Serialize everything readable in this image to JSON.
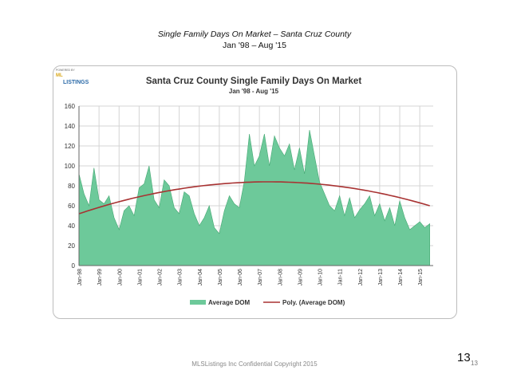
{
  "slide": {
    "title_line1": "Single Family Days On Market – Santa Cruz County",
    "title_line2": "Jan '98 – Aug '15",
    "footer": "MLSListings Inc Confidential Copyright 2015",
    "page_number_large": "13",
    "page_number_small": "13",
    "logo_top": "POWERED BY",
    "logo_ml": "ML",
    "logo_main": "LISTINGS"
  },
  "colors": {
    "area_fill": "#6dc99a",
    "area_stroke": "#45a873",
    "trend": "#a83232",
    "grid": "#d4d4d4",
    "axis": "#666666",
    "text": "#333333"
  },
  "chart_data": {
    "type": "area",
    "title": "Santa Cruz County Single Family Days On Market",
    "subtitle": "Jan '98 - Aug '15",
    "xlabel": "",
    "ylabel": "",
    "ylim": [
      0,
      160
    ],
    "yticks": [
      0,
      20,
      40,
      60,
      80,
      100,
      120,
      140,
      160
    ],
    "grid": true,
    "legend_position": "bottom",
    "xticks": [
      "Jan-98",
      "Jan-99",
      "Jan-00",
      "Jan-01",
      "Jan-02",
      "Jan-03",
      "Jan-04",
      "Jan-05",
      "Jan-06",
      "Jan-07",
      "Jan-08",
      "Jan-09",
      "Jan-10",
      "Jan-11",
      "Jan-12",
      "Jan-13",
      "Jan-14",
      "Jan-15"
    ],
    "x_start_year": 1998,
    "series": [
      {
        "name": "Average DOM",
        "type": "area",
        "interval": "quarterly",
        "values": [
          92,
          72,
          60,
          98,
          66,
          62,
          70,
          48,
          36,
          55,
          60,
          50,
          78,
          82,
          100,
          66,
          58,
          86,
          80,
          58,
          52,
          74,
          70,
          52,
          40,
          48,
          60,
          38,
          32,
          55,
          70,
          62,
          58,
          85,
          132,
          100,
          110,
          132,
          100,
          130,
          118,
          110,
          122,
          96,
          118,
          92,
          136,
          110,
          84,
          72,
          60,
          55,
          70,
          50,
          68,
          48,
          56,
          62,
          70,
          50,
          62,
          45,
          58,
          40,
          65,
          48,
          36,
          40,
          44,
          38,
          42
        ]
      },
      {
        "name": "Poly. (Average DOM)",
        "type": "line",
        "polynomial_quadratic": {
          "start": 52,
          "peak": 84,
          "peak_at_year": 2007.5,
          "end": 60
        }
      }
    ]
  }
}
